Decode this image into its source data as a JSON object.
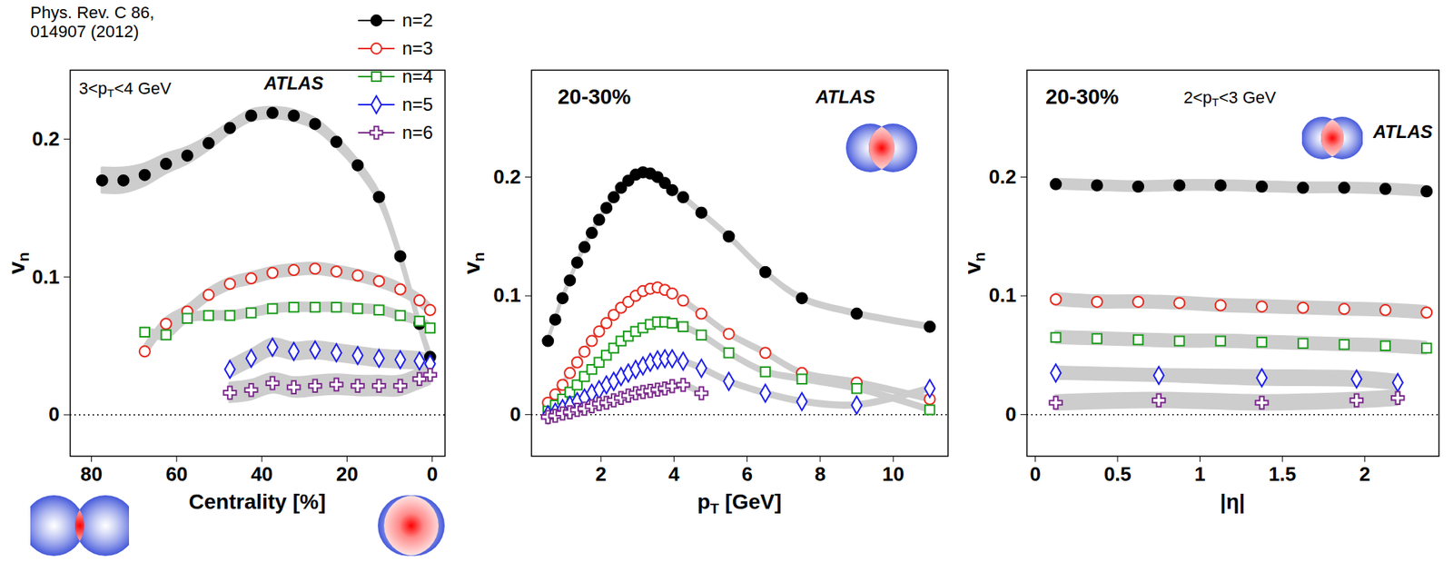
{
  "chart_data": [
    {
      "type": "scatter",
      "annotations": [
        "Phys. Rev. C 86, 014907 (2012)",
        "3<pT<4 GeV",
        "ATLAS"
      ],
      "x_label": "Centrality [%]",
      "y_label": "vn",
      "x": [
        77.5,
        72.5,
        67.5,
        62.5,
        57.5,
        52.5,
        47.5,
        42.5,
        37.5,
        32.5,
        27.5,
        22.5,
        17.5,
        12.5,
        7.5,
        3,
        0.5
      ],
      "xlim": [
        85,
        -3
      ],
      "xticks": [
        80,
        60,
        40,
        20,
        0
      ],
      "ylim": [
        -0.03,
        0.25
      ],
      "yticks": [
        0,
        0.1,
        0.2
      ],
      "legend": "top-right",
      "series": [
        {
          "name": "n=2",
          "color": "#000000",
          "marker": "circle",
          "values": [
            0.17,
            0.17,
            0.174,
            0.182,
            0.188,
            0.197,
            0.208,
            0.217,
            0.219,
            0.217,
            0.211,
            0.198,
            0.181,
            0.158,
            0.115,
            0.066,
            0.042
          ],
          "errors": [
            0.009,
            0.009,
            0.008,
            0.007,
            0.006,
            0.005,
            0.004,
            0.004,
            0.004,
            0.004,
            0.004,
            0.004,
            0.004,
            0.004,
            0.004,
            0.004,
            0.004
          ]
        },
        {
          "name": "n=3",
          "color": "#e8281c",
          "marker": "open_circle",
          "values": [
            null,
            null,
            0.046,
            0.066,
            0.075,
            0.087,
            0.095,
            0.099,
            0.103,
            0.105,
            0.106,
            0.104,
            0.101,
            0.097,
            0.091,
            0.083,
            0.076
          ],
          "errors": [
            null,
            null,
            0.004,
            0.004,
            0.004,
            0.004,
            0.004,
            0.004,
            0.004,
            0.004,
            0.004,
            0.004,
            0.004,
            0.004,
            0.004,
            0.004,
            0.004
          ]
        },
        {
          "name": "n=4",
          "color": "#1a9a1a",
          "marker": "open_square",
          "values": [
            null,
            null,
            0.06,
            0.058,
            0.07,
            0.072,
            0.072,
            0.074,
            0.077,
            0.078,
            0.078,
            0.078,
            0.077,
            0.076,
            0.072,
            0.068,
            0.063
          ],
          "errors": [
            null,
            null,
            0.003,
            0.003,
            0.003,
            0.003,
            0.003,
            0.003,
            0.003,
            0.003,
            0.003,
            0.003,
            0.003,
            0.003,
            0.003,
            0.003,
            0.003
          ]
        },
        {
          "name": "n=5",
          "color": "#1c1cf0",
          "marker": "open_diamond",
          "values": [
            null,
            null,
            null,
            null,
            null,
            null,
            0.033,
            0.041,
            0.049,
            0.046,
            0.047,
            0.045,
            0.043,
            0.041,
            0.04,
            0.039,
            0.037
          ],
          "errors": [
            null,
            null,
            null,
            null,
            null,
            null,
            0.006,
            0.006,
            0.006,
            0.006,
            0.006,
            0.006,
            0.006,
            0.006,
            0.006,
            0.006,
            0.006
          ]
        },
        {
          "name": "n=6",
          "color": "#7b2a8c",
          "marker": "open_cross",
          "values": [
            null,
            null,
            null,
            null,
            null,
            null,
            0.016,
            0.018,
            0.023,
            0.02,
            0.021,
            0.022,
            0.021,
            0.021,
            0.021,
            0.026,
            0.029
          ],
          "errors": [
            null,
            null,
            null,
            null,
            null,
            null,
            0.007,
            0.007,
            0.007,
            0.007,
            0.007,
            0.007,
            0.007,
            0.007,
            0.007,
            0.007,
            0.007
          ]
        }
      ]
    },
    {
      "type": "scatter",
      "annotations": [
        "20-30%",
        "ATLAS"
      ],
      "x_label": "pT [GeV]",
      "y_label": "vn",
      "x": [
        0.55,
        0.75,
        0.95,
        1.15,
        1.35,
        1.55,
        1.75,
        1.95,
        2.15,
        2.35,
        2.55,
        2.75,
        2.95,
        3.15,
        3.35,
        3.55,
        3.75,
        3.95,
        4.25,
        4.75,
        5.5,
        6.5,
        7.5,
        9,
        11
      ],
      "xlim": [
        0.1,
        11.5
      ],
      "xticks": [
        2,
        4,
        6,
        8,
        10
      ],
      "ylim": [
        -0.035,
        0.29
      ],
      "yticks": [
        0,
        0.1,
        0.2
      ],
      "legend": false,
      "series": [
        {
          "name": "n=2",
          "color": "#000000",
          "marker": "circle",
          "values": [
            0.062,
            0.08,
            0.098,
            0.113,
            0.128,
            0.141,
            0.153,
            0.164,
            0.174,
            0.183,
            0.191,
            0.197,
            0.202,
            0.204,
            0.203,
            0.2,
            0.195,
            0.189,
            0.183,
            0.17,
            0.15,
            0.12,
            0.098,
            0.085,
            0.074
          ],
          "errors": [
            0.002,
            0.002,
            0.002,
            0.002,
            0.002,
            0.002,
            0.002,
            0.002,
            0.002,
            0.002,
            0.002,
            0.002,
            0.002,
            0.002,
            0.002,
            0.002,
            0.002,
            0.002,
            0.002,
            0.002,
            0.002,
            0.002,
            0.002,
            0.002,
            0.002
          ]
        },
        {
          "name": "n=3",
          "color": "#e8281c",
          "marker": "open_circle",
          "values": [
            0.01,
            0.017,
            0.025,
            0.035,
            0.044,
            0.053,
            0.062,
            0.07,
            0.077,
            0.084,
            0.09,
            0.095,
            0.1,
            0.104,
            0.106,
            0.107,
            0.105,
            0.102,
            0.096,
            0.085,
            0.068,
            0.052,
            0.035,
            0.027,
            0.013
          ],
          "errors": [
            0.002,
            0.002,
            0.002,
            0.002,
            0.002,
            0.002,
            0.002,
            0.002,
            0.002,
            0.002,
            0.002,
            0.002,
            0.002,
            0.002,
            0.002,
            0.002,
            0.002,
            0.002,
            0.002,
            0.002,
            0.002,
            0.002,
            0.002,
            0.002,
            0.002
          ]
        },
        {
          "name": "n=4",
          "color": "#1a9a1a",
          "marker": "open_square",
          "values": [
            0.003,
            0.008,
            0.013,
            0.019,
            0.025,
            0.032,
            0.038,
            0.044,
            0.05,
            0.056,
            0.062,
            0.066,
            0.07,
            0.073,
            0.076,
            0.078,
            0.078,
            0.077,
            0.074,
            0.067,
            0.052,
            0.036,
            0.03,
            0.022,
            0.004
          ],
          "errors": [
            0.002,
            0.002,
            0.002,
            0.002,
            0.002,
            0.002,
            0.002,
            0.002,
            0.002,
            0.002,
            0.002,
            0.002,
            0.002,
            0.002,
            0.002,
            0.002,
            0.002,
            0.002,
            0.002,
            0.002,
            0.002,
            0.002,
            0.002,
            0.002,
            0.002
          ]
        },
        {
          "name": "n=5",
          "color": "#1c1cf0",
          "marker": "open_diamond",
          "values": [
            0,
            0.002,
            0.005,
            0.008,
            0.011,
            0.014,
            0.018,
            0.021,
            0.025,
            0.028,
            0.032,
            0.035,
            0.038,
            0.041,
            0.044,
            0.046,
            0.047,
            0.047,
            0.045,
            0.039,
            0.028,
            0.018,
            0.011,
            0.008,
            0.022
          ],
          "errors": [
            0.002,
            0.002,
            0.002,
            0.002,
            0.002,
            0.002,
            0.002,
            0.002,
            0.002,
            0.002,
            0.002,
            0.002,
            0.002,
            0.002,
            0.002,
            0.002,
            0.002,
            0.002,
            0.002,
            0.002,
            0.002,
            0.002,
            0.002,
            0.002,
            0.002
          ]
        },
        {
          "name": "n=6",
          "color": "#7b2a8c",
          "marker": "open_cross",
          "values": [
            -0.002,
            -0.001,
            0.001,
            0.002,
            0.004,
            0.005,
            0.007,
            0.009,
            0.01,
            0.012,
            0.014,
            0.016,
            0.018,
            0.019,
            0.02,
            0.021,
            0.022,
            0.024,
            0.025,
            0.018,
            null,
            null,
            null,
            null,
            null
          ],
          "errors": [
            0.002,
            0.002,
            0.002,
            0.002,
            0.002,
            0.002,
            0.002,
            0.002,
            0.002,
            0.002,
            0.002,
            0.002,
            0.002,
            0.002,
            0.002,
            0.002,
            0.002,
            0.002,
            0.002,
            0.002,
            null,
            null,
            null,
            null,
            null
          ]
        }
      ]
    },
    {
      "type": "scatter",
      "annotations": [
        "20-30%",
        "2<pT<3 GeV",
        "ATLAS"
      ],
      "x_label": "|η|",
      "y_label": "vn",
      "x": [
        0.125,
        0.375,
        0.625,
        0.875,
        1.125,
        1.375,
        1.625,
        1.875,
        2.125,
        2.375
      ],
      "xlim": [
        -0.05,
        2.45
      ],
      "xticks": [
        0,
        0.5,
        1,
        1.5,
        2
      ],
      "ylim": [
        -0.035,
        0.29
      ],
      "yticks": [
        0,
        0.1,
        0.2
      ],
      "legend": false,
      "series": [
        {
          "name": "n=2",
          "color": "#000000",
          "marker": "circle",
          "values": [
            0.194,
            0.193,
            0.192,
            0.193,
            0.193,
            0.192,
            0.191,
            0.191,
            0.19,
            0.188
          ],
          "errors": [
            0.004,
            0.004,
            0.004,
            0.004,
            0.004,
            0.004,
            0.004,
            0.004,
            0.004,
            0.004
          ]
        },
        {
          "name": "n=3",
          "color": "#e8281c",
          "marker": "open_circle",
          "values": [
            0.097,
            0.095,
            0.095,
            0.094,
            0.092,
            0.091,
            0.09,
            0.089,
            0.088,
            0.086
          ],
          "errors": [
            0.005,
            0.005,
            0.005,
            0.005,
            0.005,
            0.005,
            0.005,
            0.005,
            0.005,
            0.005
          ]
        },
        {
          "name": "n=4",
          "color": "#1a9a1a",
          "marker": "open_square",
          "values": [
            0.065,
            0.064,
            0.063,
            0.062,
            0.062,
            0.061,
            0.06,
            0.059,
            0.058,
            0.056
          ],
          "errors": [
            0.005,
            0.005,
            0.005,
            0.005,
            0.005,
            0.005,
            0.005,
            0.005,
            0.005,
            0.005
          ]
        },
        {
          "name": "n=5",
          "color": "#1c1cf0",
          "marker": "open_diamond",
          "x": [
            0.125,
            0.75,
            1.375,
            1.95,
            2.2
          ],
          "values": [
            0.035,
            0.033,
            0.031,
            0.03,
            0.027
          ],
          "errors": [
            0.005,
            0.005,
            0.006,
            0.006,
            0.006
          ]
        },
        {
          "name": "n=6",
          "color": "#7b2a8c",
          "marker": "open_cross",
          "x": [
            0.125,
            0.75,
            1.375,
            1.95,
            2.2
          ],
          "values": [
            0.01,
            0.012,
            0.01,
            0.012,
            0.014
          ],
          "errors": [
            0.006,
            0.006,
            0.006,
            0.006,
            0.006
          ]
        }
      ]
    }
  ]
}
